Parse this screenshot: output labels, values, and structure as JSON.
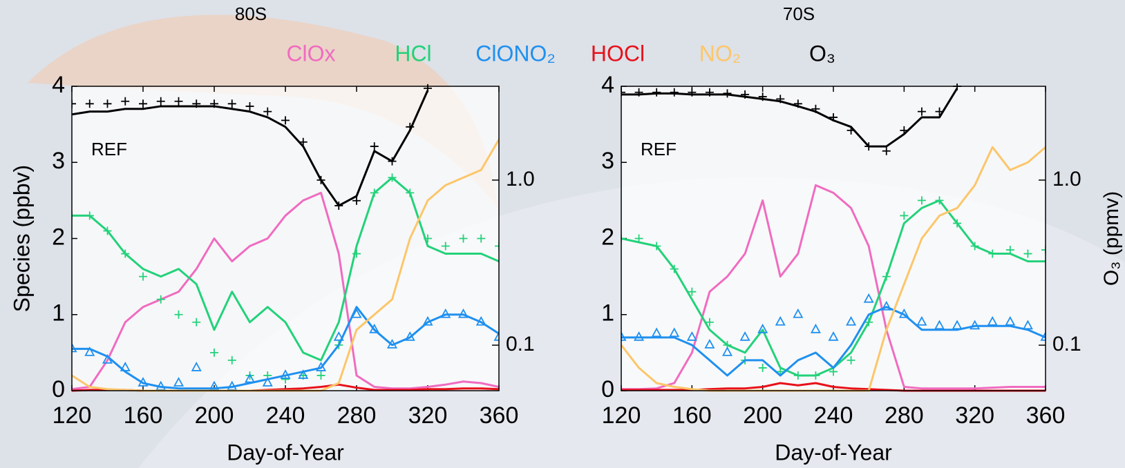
{
  "chart_data": [
    {
      "type": "line",
      "title": "80S",
      "annotation": "REF",
      "xlabel": "Day-of-Year",
      "ylabel": "Species (ppbv)",
      "x": [
        120,
        130,
        140,
        150,
        160,
        170,
        180,
        190,
        200,
        210,
        220,
        230,
        240,
        250,
        260,
        270,
        280,
        290,
        300,
        310,
        320,
        330,
        340,
        350,
        360
      ],
      "xlim": [
        120,
        360
      ],
      "xticks": [
        120,
        160,
        200,
        240,
        280,
        320,
        360
      ],
      "ylim": [
        0,
        4
      ],
      "yticks": [
        0,
        1,
        2,
        3,
        4
      ],
      "y2lim": [
        0.053,
        3.7
      ],
      "y2log": true,
      "y2ticks": [
        0.1,
        {
          "value": 1,
          "label": "1.0"
        }
      ],
      "series": [
        {
          "name": "ClOx",
          "color": "#f06bc0",
          "marker": "line",
          "values": [
            0.02,
            0.05,
            0.4,
            0.9,
            1.1,
            1.2,
            1.3,
            1.6,
            2.0,
            1.7,
            1.9,
            2.0,
            2.3,
            2.5,
            2.6,
            1.8,
            0.2,
            0.05,
            0.03,
            0.03,
            0.05,
            0.08,
            0.12,
            0.1,
            0.05
          ]
        },
        {
          "name": "HCl",
          "color": "#22d27a",
          "marker": "line",
          "values": [
            2.3,
            2.3,
            2.1,
            1.8,
            1.6,
            1.5,
            1.6,
            1.4,
            0.8,
            1.3,
            0.9,
            1.1,
            0.9,
            0.5,
            0.4,
            0.9,
            1.9,
            2.6,
            2.8,
            2.6,
            1.9,
            1.8,
            1.8,
            1.8,
            1.7
          ]
        },
        {
          "color": "#22d27a",
          "marker": "plus",
          "values": [
            2.3,
            2.3,
            2.1,
            1.8,
            1.5,
            1.2,
            1.0,
            0.9,
            0.5,
            0.4,
            0.2,
            0.2,
            0.15,
            0.2,
            0.2,
            0.6,
            1.8,
            2.6,
            2.8,
            2.6,
            2.0,
            1.9,
            2.0,
            2.0,
            1.9
          ]
        },
        {
          "name": "ClONO₂",
          "color": "#1e90f0",
          "marker": "line",
          "values": [
            0.55,
            0.55,
            0.45,
            0.25,
            0.1,
            0.05,
            0.03,
            0.03,
            0.03,
            0.05,
            0.1,
            0.15,
            0.2,
            0.25,
            0.3,
            0.6,
            1.1,
            0.8,
            0.6,
            0.7,
            0.9,
            1.0,
            1.0,
            0.9,
            0.75
          ]
        },
        {
          "color": "#1e90f0",
          "marker": "triangle",
          "values": [
            0.55,
            0.5,
            0.4,
            0.3,
            0.1,
            0.05,
            0.1,
            0.3,
            0.05,
            0.05,
            0.15,
            0.1,
            0.2,
            0.2,
            0.3,
            0.7,
            1.0,
            0.8,
            0.6,
            0.7,
            0.9,
            1.0,
            1.0,
            0.9,
            0.7
          ]
        },
        {
          "name": "HOCl",
          "color": "#e8101a",
          "marker": "line",
          "values": [
            0,
            0.01,
            0.01,
            0.01,
            0,
            0,
            0,
            0,
            0,
            0,
            0,
            0.01,
            0.02,
            0.03,
            0.05,
            0.08,
            0.04,
            0.01,
            0.01,
            0.01,
            0.02,
            0.02,
            0.03,
            0.03,
            0.02
          ]
        },
        {
          "name": "NO₂",
          "color": "#fcc66a",
          "marker": "line",
          "values": [
            0.2,
            0.05,
            0.02,
            0.01,
            0,
            0,
            0,
            0,
            0,
            0,
            0,
            0,
            0,
            0,
            0,
            0.1,
            0.8,
            1.0,
            1.2,
            2.0,
            2.5,
            2.7,
            2.8,
            2.9,
            3.3
          ]
        },
        {
          "name": "O₃",
          "color": "#000000",
          "marker": "line",
          "axis": "y2",
          "values": [
            2.5,
            2.6,
            2.6,
            2.7,
            2.7,
            2.8,
            2.8,
            2.8,
            2.8,
            2.7,
            2.6,
            2.4,
            2.1,
            1.6,
            1.0,
            0.7,
            0.8,
            1.5,
            1.3,
            2.0,
            3.5,
            null,
            null,
            null,
            null
          ]
        },
        {
          "color": "#000000",
          "marker": "plus",
          "axis": "y2",
          "values": [
            2.9,
            2.9,
            2.9,
            3.0,
            2.9,
            3.0,
            3.0,
            2.9,
            2.9,
            2.9,
            2.8,
            2.6,
            2.3,
            1.7,
            1.0,
            0.7,
            0.75,
            1.6,
            1.3,
            2.1,
            3.6,
            null,
            null,
            null,
            null
          ]
        }
      ]
    },
    {
      "type": "line",
      "title": "70S",
      "annotation": "REF",
      "xlabel": "Day-of-Year",
      "y2label": "O₃ (ppmv)",
      "x": [
        120,
        130,
        140,
        150,
        160,
        170,
        180,
        190,
        200,
        210,
        220,
        230,
        240,
        250,
        260,
        270,
        280,
        290,
        300,
        310,
        320,
        330,
        340,
        350,
        360
      ],
      "xlim": [
        120,
        360
      ],
      "xticks": [
        120,
        160,
        200,
        240,
        280,
        320,
        360
      ],
      "ylim": [
        0,
        4
      ],
      "yticks": [
        0,
        1,
        2,
        3,
        4
      ],
      "y2lim": [
        0.053,
        3.7
      ],
      "y2log": true,
      "y2ticks": [
        0.1,
        {
          "value": 1,
          "label": "1.0"
        }
      ],
      "series": [
        {
          "color": "#f06bc0",
          "marker": "line",
          "values": [
            0.02,
            0.02,
            0.03,
            0.1,
            0.5,
            1.3,
            1.5,
            1.8,
            2.5,
            1.5,
            1.8,
            2.7,
            2.6,
            2.4,
            1.9,
            0.8,
            0.05,
            0.03,
            0.03,
            0.03,
            0.03,
            0.04,
            0.05,
            0.05,
            0.05
          ]
        },
        {
          "color": "#22d27a",
          "marker": "line",
          "values": [
            2.0,
            1.95,
            1.9,
            1.6,
            1.2,
            0.8,
            0.6,
            0.5,
            0.8,
            0.3,
            0.2,
            0.2,
            0.3,
            0.5,
            0.9,
            1.5,
            2.2,
            2.4,
            2.5,
            2.2,
            1.9,
            1.8,
            1.8,
            1.7,
            1.7
          ]
        },
        {
          "color": "#22d27a",
          "marker": "plus",
          "values": [
            2.0,
            2.0,
            1.9,
            1.6,
            1.3,
            0.9,
            0.6,
            0.4,
            0.3,
            0.25,
            0.2,
            0.2,
            0.25,
            0.4,
            0.9,
            1.5,
            2.3,
            2.5,
            2.5,
            2.2,
            1.9,
            1.8,
            1.85,
            1.8,
            1.85
          ]
        },
        {
          "color": "#1e90f0",
          "marker": "line",
          "values": [
            0.7,
            0.7,
            0.7,
            0.7,
            0.6,
            0.4,
            0.2,
            0.4,
            0.4,
            0.2,
            0.4,
            0.5,
            0.3,
            0.6,
            1.0,
            1.1,
            1.0,
            0.8,
            0.8,
            0.8,
            0.85,
            0.85,
            0.85,
            0.8,
            0.7
          ]
        },
        {
          "color": "#1e90f0",
          "marker": "triangle",
          "values": [
            0.7,
            0.7,
            0.75,
            0.75,
            0.7,
            0.6,
            0.5,
            0.7,
            0.8,
            0.9,
            1.0,
            0.8,
            0.7,
            0.9,
            1.2,
            1.1,
            1.0,
            0.9,
            0.85,
            0.85,
            0.85,
            0.9,
            0.9,
            0.85,
            0.7
          ]
        },
        {
          "color": "#e8101a",
          "marker": "line",
          "values": [
            0.01,
            0.01,
            0.01,
            0.01,
            0.01,
            0.02,
            0.03,
            0.03,
            0.05,
            0.1,
            0.07,
            0.1,
            0.05,
            0.03,
            0.02,
            0.01,
            0,
            0,
            0,
            0,
            0,
            0,
            0,
            0,
            0
          ]
        },
        {
          "color": "#fcc66a",
          "marker": "line",
          "values": [
            0.6,
            0.3,
            0.1,
            0.05,
            0.02,
            0,
            0,
            0,
            0,
            0,
            0,
            0,
            0,
            0,
            0,
            0.8,
            1.4,
            2.0,
            2.3,
            2.4,
            2.7,
            3.2,
            2.9,
            3.0,
            3.2
          ]
        },
        {
          "color": "#000000",
          "marker": "line",
          "axis": "y2",
          "values": [
            3.3,
            3.3,
            3.35,
            3.35,
            3.3,
            3.3,
            3.3,
            3.2,
            3.1,
            3.0,
            2.8,
            2.6,
            2.3,
            2.1,
            1.6,
            1.6,
            1.9,
            2.4,
            2.4,
            3.6,
            null,
            null,
            null,
            null,
            null
          ]
        },
        {
          "color": "#000000",
          "marker": "plus",
          "axis": "y2",
          "values": [
            3.4,
            3.4,
            3.4,
            3.4,
            3.4,
            3.4,
            3.35,
            3.3,
            3.2,
            3.1,
            2.9,
            2.7,
            2.4,
            2.0,
            1.6,
            1.5,
            2.0,
            2.6,
            2.6,
            3.7,
            null,
            null,
            null,
            null,
            null
          ]
        }
      ]
    }
  ]
}
